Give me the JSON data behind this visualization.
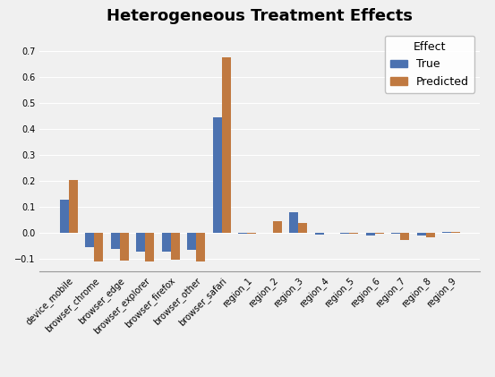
{
  "title": "Heterogeneous Treatment Effects",
  "categories": [
    "device_mobile",
    "browser_chrome",
    "browser_edge",
    "browser_explorer",
    "browser_firefox",
    "browser_other",
    "browser_safari",
    "region_1",
    "region_2",
    "region_3",
    "region_4",
    "region_5",
    "region_6",
    "region_7",
    "region_8",
    "region_9"
  ],
  "true_values": [
    0.128,
    -0.055,
    -0.065,
    -0.075,
    -0.072,
    -0.068,
    0.445,
    -0.003,
    -0.002,
    0.078,
    -0.008,
    -0.005,
    -0.01,
    -0.005,
    -0.012,
    0.003
  ],
  "predicted_values": [
    0.202,
    -0.112,
    -0.108,
    -0.112,
    -0.105,
    -0.112,
    0.675,
    -0.005,
    0.043,
    0.038,
    0.0,
    -0.005,
    -0.005,
    -0.028,
    -0.02,
    0.003
  ],
  "true_color": "#4c72b0",
  "predicted_color": "#c07940",
  "bar_width": 0.35,
  "ylim": [
    -0.15,
    0.78
  ],
  "yticks": [
    -0.1,
    0.0,
    0.1,
    0.2,
    0.3,
    0.4,
    0.5,
    0.6,
    0.7
  ],
  "legend_title": "Effect",
  "legend_labels": [
    "True",
    "Predicted"
  ],
  "bg_color": "#f0f0f0",
  "grid_color": "#ffffff",
  "title_fontsize": 13,
  "tick_fontsize": 7,
  "legend_fontsize": 9
}
